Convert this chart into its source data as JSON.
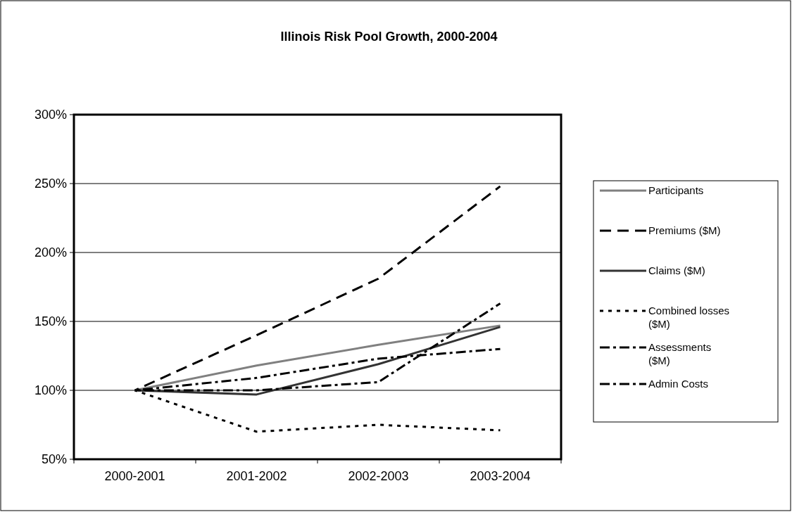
{
  "chart_data": {
    "type": "line",
    "title": "Illinois Risk Pool Growth, 2000-2004",
    "categories": [
      "2000-2001",
      "2001-2002",
      "2002-2003",
      "2003-2004"
    ],
    "series": [
      {
        "name": "Participants",
        "color": "#808080",
        "line_style": "solid",
        "values": [
          100,
          118,
          133,
          147
        ]
      },
      {
        "name": "Premiums ($M)",
        "color": "#000000",
        "line_style": "dashed",
        "values": [
          100,
          140,
          181,
          248
        ]
      },
      {
        "name": "Claims ($M)",
        "color": "#333333",
        "line_style": "solid",
        "values": [
          100,
          97,
          119,
          146
        ]
      },
      {
        "name": "Combined losses ($M)",
        "color": "#000000",
        "line_style": "dotted",
        "values": [
          100,
          70,
          75,
          71
        ]
      },
      {
        "name": "Assessments ($M)",
        "color": "#000000",
        "line_style": "dashdot",
        "values": [
          100,
          109,
          123,
          130
        ]
      },
      {
        "name": "Admin Costs",
        "color": "#000000",
        "line_style": "dashdot",
        "values": [
          100,
          100,
          106,
          163
        ]
      }
    ],
    "ylim": [
      50,
      300
    ],
    "yticks": [
      {
        "value": 50,
        "label": "50%"
      },
      {
        "value": 100,
        "label": "100%"
      },
      {
        "value": 150,
        "label": "150%"
      },
      {
        "value": 200,
        "label": "200%"
      },
      {
        "value": 250,
        "label": "250%"
      },
      {
        "value": 300,
        "label": "300%"
      }
    ],
    "grid": "y",
    "legend": "right"
  }
}
